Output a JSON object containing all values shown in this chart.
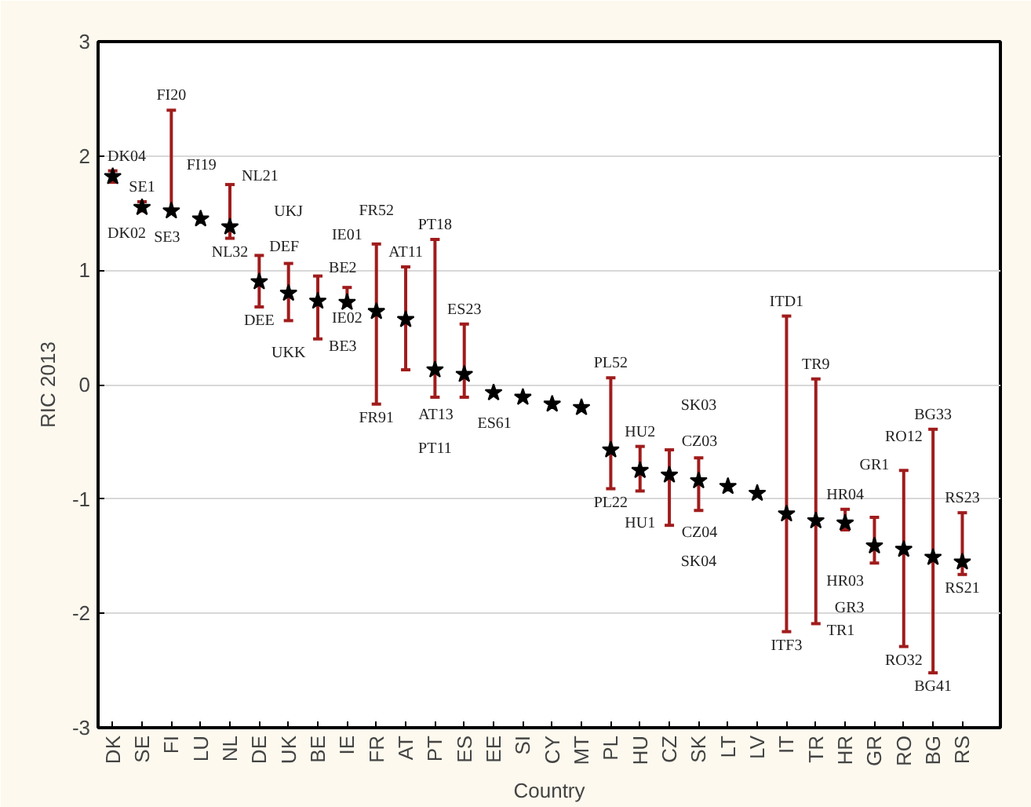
{
  "chart_data": {
    "type": "scatter",
    "xlabel": "Country",
    "ylabel": "RIC 2013",
    "categories": [
      "DK",
      "SE",
      "FI",
      "LU",
      "NL",
      "DE",
      "UK",
      "BE",
      "IE",
      "FR",
      "AT",
      "PT",
      "ES",
      "EE",
      "SI",
      "CY",
      "MT",
      "PL",
      "HU",
      "CZ",
      "SK",
      "LT",
      "LV",
      "IT",
      "TR",
      "HR",
      "GR",
      "RO",
      "BG",
      "RS"
    ],
    "series": [
      {
        "color": "#000000",
        "values": [
          1.82,
          1.55,
          1.52,
          1.45,
          1.38,
          0.9,
          0.8,
          0.73,
          0.72,
          0.64,
          0.57,
          0.13,
          0.09,
          -0.07,
          -0.11,
          -0.17,
          -0.2,
          -0.57,
          -0.75,
          -0.79,
          -0.84,
          -0.89,
          -0.95,
          -1.13,
          -1.19,
          -1.21,
          -1.41,
          -1.44,
          -1.51,
          -1.55
        ],
        "errors": [
          [
            1.77,
            1.87
          ],
          [
            1.52,
            1.6
          ],
          [
            1.52,
            2.4
          ],
          null,
          [
            1.28,
            1.75
          ],
          [
            0.68,
            1.13
          ],
          [
            0.56,
            1.06
          ],
          [
            0.4,
            0.95
          ],
          [
            0.7,
            0.85
          ],
          [
            -0.17,
            1.23
          ],
          [
            0.13,
            1.03
          ],
          [
            -0.11,
            1.27
          ],
          [
            -0.11,
            0.53
          ],
          null,
          null,
          null,
          null,
          [
            -0.91,
            0.06
          ],
          [
            -0.93,
            -0.54
          ],
          [
            -1.23,
            -0.57
          ],
          [
            -1.1,
            -0.64
          ],
          null,
          null,
          [
            -2.16,
            0.6
          ],
          [
            -2.09,
            0.05
          ],
          [
            -1.27,
            -1.09
          ],
          [
            -1.56,
            -1.16
          ],
          [
            -2.29,
            -0.75
          ],
          [
            -2.52,
            -0.39
          ],
          [
            -1.66,
            -1.12
          ]
        ]
      }
    ],
    "annotations": [
      {
        "text": "DK04",
        "x": "DK",
        "y": 1.87
      },
      {
        "text": "DK02",
        "x": "DK",
        "y": 1.77
      },
      {
        "text": "SE1",
        "x": "SE",
        "y": 1.6
      },
      {
        "text": "SE3",
        "x": "SE",
        "y": 1.52
      },
      {
        "text": "FI20",
        "x": "FI",
        "y": 2.4
      },
      {
        "text": "FI19",
        "x": "FI",
        "y": 1.52
      },
      {
        "text": "NL21",
        "x": "NL",
        "y": 1.75
      },
      {
        "text": "NL32",
        "x": "NL",
        "y": 1.28
      },
      {
        "text": "DEF",
        "x": "DE",
        "y": 1.13
      },
      {
        "text": "DEE",
        "x": "DE",
        "y": 0.68
      },
      {
        "text": "UKJ",
        "x": "UK",
        "y": 1.06
      },
      {
        "text": "UKK",
        "x": "UK",
        "y": 0.56
      },
      {
        "text": "BE2",
        "x": "BE",
        "y": 0.95
      },
      {
        "text": "BE3",
        "x": "BE",
        "y": 0.4
      },
      {
        "text": "IE01",
        "x": "IE",
        "y": 0.85
      },
      {
        "text": "IE02",
        "x": "IE",
        "y": 0.7
      },
      {
        "text": "FR52",
        "x": "FR",
        "y": 1.23
      },
      {
        "text": "FR91",
        "x": "FR",
        "y": -0.17
      },
      {
        "text": "AT11",
        "x": "AT",
        "y": 1.03
      },
      {
        "text": "AT13",
        "x": "AT",
        "y": 0.13
      },
      {
        "text": "PT18",
        "x": "PT",
        "y": 1.27
      },
      {
        "text": "PT11",
        "x": "PT",
        "y": -0.11
      },
      {
        "text": "ES23",
        "x": "ES",
        "y": 0.53
      },
      {
        "text": "ES61",
        "x": "ES",
        "y": -0.11
      },
      {
        "text": "PL52",
        "x": "PL",
        "y": 0.06
      },
      {
        "text": "PL22",
        "x": "PL",
        "y": -0.91
      },
      {
        "text": "HU2",
        "x": "HU",
        "y": -0.54
      },
      {
        "text": "HU1",
        "x": "HU",
        "y": -0.93
      },
      {
        "text": "CZ03",
        "x": "CZ",
        "y": -0.57
      },
      {
        "text": "CZ04",
        "x": "CZ",
        "y": -1.23
      },
      {
        "text": "SK03",
        "x": "SK",
        "y": -0.64
      },
      {
        "text": "SK04",
        "x": "SK",
        "y": -1.1
      },
      {
        "text": "ITD1",
        "x": "IT",
        "y": 0.6
      },
      {
        "text": "ITF3",
        "x": "IT",
        "y": -2.16
      },
      {
        "text": "TR9",
        "x": "TR",
        "y": 0.05
      },
      {
        "text": "TR1",
        "x": "TR",
        "y": -2.09
      },
      {
        "text": "HR04",
        "x": "HR",
        "y": -1.09
      },
      {
        "text": "HR03",
        "x": "HR",
        "y": -1.27
      },
      {
        "text": "GR1",
        "x": "GR",
        "y": -1.16
      },
      {
        "text": "GR3",
        "x": "GR",
        "y": -1.56
      },
      {
        "text": "RO12",
        "x": "RO",
        "y": -0.75
      },
      {
        "text": "RO32",
        "x": "RO",
        "y": -2.29
      },
      {
        "text": "BG33",
        "x": "BG",
        "y": -0.39
      },
      {
        "text": "BG41",
        "x": "BG",
        "y": -2.52
      },
      {
        "text": "RS23",
        "x": "RS",
        "y": -1.12
      },
      {
        "text": "RS21",
        "x": "RS",
        "y": -1.66
      }
    ],
    "ylim": [
      -3,
      3
    ],
    "yticks": [
      -3,
      -2,
      -1,
      0,
      1,
      2,
      3
    ],
    "grid": "y",
    "marker": "star"
  }
}
